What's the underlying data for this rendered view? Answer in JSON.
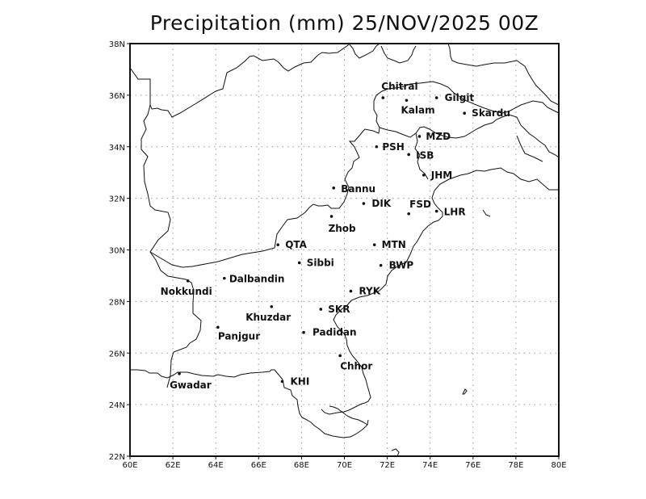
{
  "title": "Precipitation (mm) 25/NOV/2025 00Z",
  "colors": {
    "background": "#ffffff",
    "lines": "#111111",
    "grid": "#9a9a9a"
  },
  "map": {
    "extent": {
      "lon_min": 60,
      "lon_max": 80,
      "lat_min": 22,
      "lat_max": 38
    },
    "x_ticks": [
      "60E",
      "62E",
      "64E",
      "66E",
      "68E",
      "70E",
      "72E",
      "74E",
      "76E",
      "78E",
      "80E"
    ],
    "y_ticks": [
      "38N",
      "36N",
      "34N",
      "32N",
      "30N",
      "28N",
      "26N",
      "24N",
      "22N"
    ],
    "grid": "dotted"
  },
  "stations": [
    {
      "name": "Chitral",
      "lon": 71.8,
      "lat": 35.9
    },
    {
      "name": "Kalam",
      "lon": 72.9,
      "lat": 35.8
    },
    {
      "name": "Gilgit",
      "lon": 74.3,
      "lat": 35.9
    },
    {
      "name": "Skardu",
      "lon": 75.6,
      "lat": 35.3
    },
    {
      "name": "MZD",
      "lon": 73.5,
      "lat": 34.4
    },
    {
      "name": "PSH",
      "lon": 71.5,
      "lat": 34.0
    },
    {
      "name": "ISB",
      "lon": 73.0,
      "lat": 33.7
    },
    {
      "name": "JHM",
      "lon": 73.7,
      "lat": 32.9
    },
    {
      "name": "Bannu",
      "lon": 69.5,
      "lat": 32.4
    },
    {
      "name": "DIK",
      "lon": 70.9,
      "lat": 31.8
    },
    {
      "name": "FSD",
      "lon": 73.0,
      "lat": 31.4
    },
    {
      "name": "LHR",
      "lon": 74.3,
      "lat": 31.5
    },
    {
      "name": "Zhob",
      "lon": 69.4,
      "lat": 31.3
    },
    {
      "name": "QTA",
      "lon": 66.9,
      "lat": 30.2
    },
    {
      "name": "MTN",
      "lon": 71.4,
      "lat": 30.2
    },
    {
      "name": "Sibbi",
      "lon": 67.9,
      "lat": 29.5
    },
    {
      "name": "BWP",
      "lon": 71.7,
      "lat": 29.4
    },
    {
      "name": "Nokkundi",
      "lon": 62.7,
      "lat": 28.8
    },
    {
      "name": "Dalbandin",
      "lon": 64.4,
      "lat": 28.9
    },
    {
      "name": "RYK",
      "lon": 70.3,
      "lat": 28.4
    },
    {
      "name": "Khuzdar",
      "lon": 66.6,
      "lat": 27.8
    },
    {
      "name": "SKR",
      "lon": 68.9,
      "lat": 27.7
    },
    {
      "name": "Panjgur",
      "lon": 64.1,
      "lat": 27.0
    },
    {
      "name": "Padidan",
      "lon": 68.1,
      "lat": 26.8
    },
    {
      "name": "Chhor",
      "lon": 69.8,
      "lat": 25.9
    },
    {
      "name": "Gwadar",
      "lon": 62.3,
      "lat": 25.2
    },
    {
      "name": "KHI",
      "lon": 67.1,
      "lat": 24.9
    }
  ]
}
